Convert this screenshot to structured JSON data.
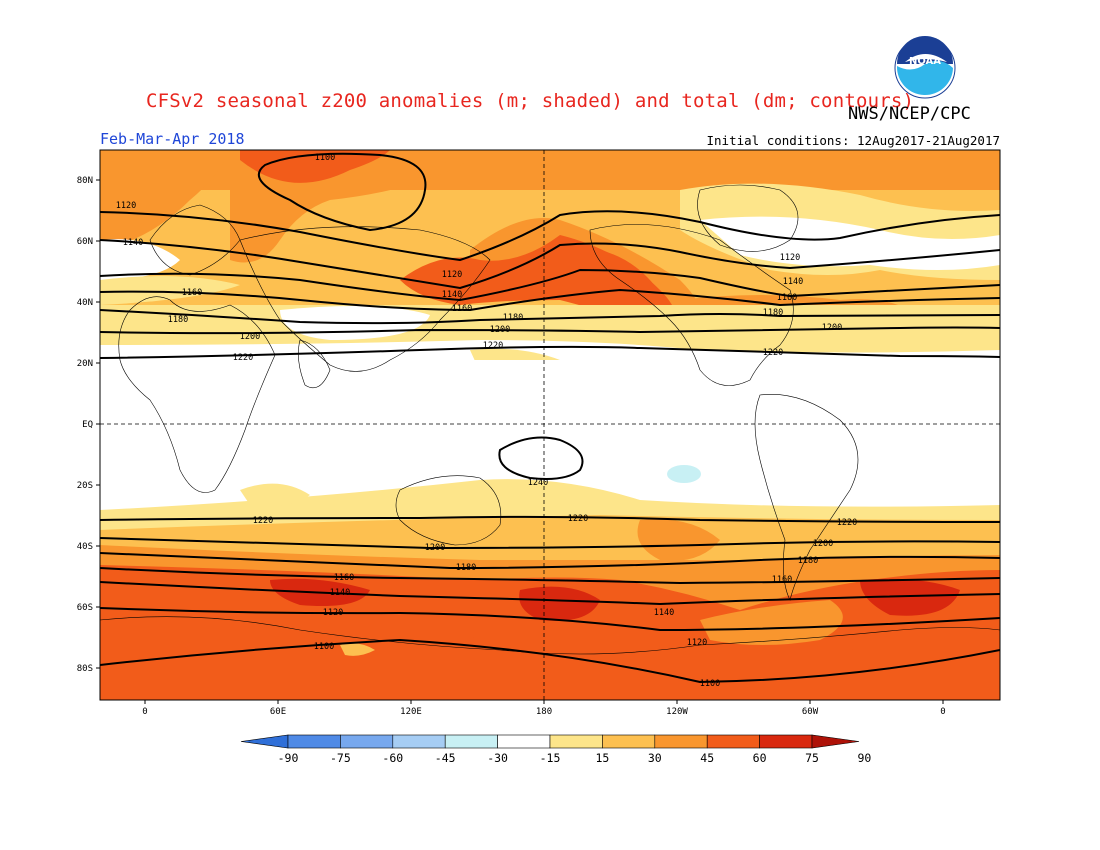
{
  "title": "CFSv2 seasonal z200 anomalies (m; shaded) and total (dm; contours)",
  "agency": "NWS/NCEP/CPC",
  "logo_text": "NOAA",
  "period": "Feb-Mar-Apr 2018",
  "initial_conditions": "Initial conditions: 12Aug2017-21Aug2017",
  "latitude_labels": [
    "80N",
    "60N",
    "40N",
    "20N",
    "EQ",
    "20S",
    "40S",
    "60S",
    "80S"
  ],
  "longitude_labels": [
    "0",
    "60E",
    "120E",
    "180",
    "120W",
    "60W",
    "0"
  ],
  "contour_labels": [
    "1100",
    "1120",
    "1140",
    "1160",
    "1180",
    "1200",
    "1220",
    "1240"
  ],
  "colorbar": {
    "labels": [
      "-90",
      "-75",
      "-60",
      "-45",
      "-30",
      "-15",
      "15",
      "30",
      "45",
      "60",
      "75",
      "90"
    ],
    "colors": [
      "#2f6fd8",
      "#4f8ae6",
      "#77a8ee",
      "#a6cdf4",
      "#c8f0f4",
      "#ffffff",
      "#fde58a",
      "#fdc050",
      "#f9962e",
      "#f25c1a",
      "#d9280f",
      "#ae1208"
    ]
  },
  "colors": {
    "title": "#e8261f",
    "period": "#1f46d8"
  }
}
